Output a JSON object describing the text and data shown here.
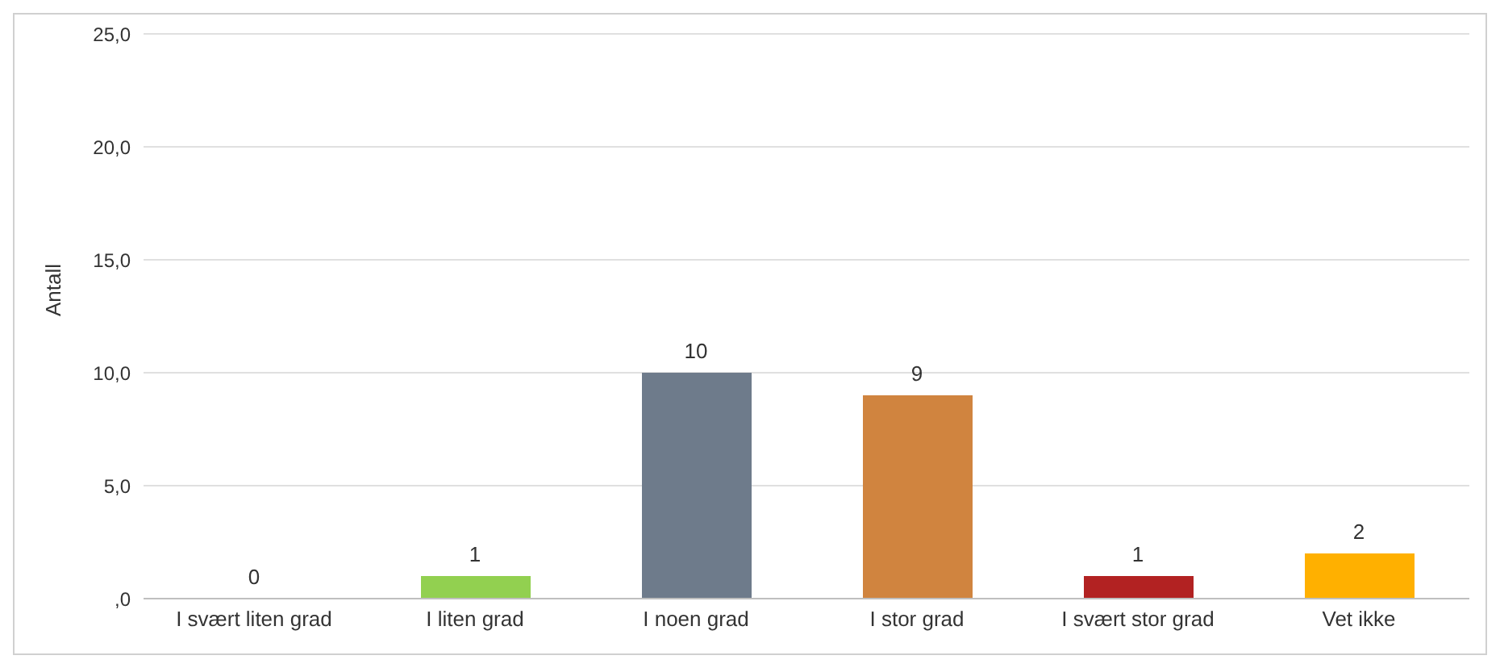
{
  "chart_data": {
    "type": "bar",
    "ylabel": "Antall",
    "categories": [
      "I svært liten grad",
      "I liten grad",
      "I noen grad",
      "I stor grad",
      "I svært stor grad",
      "Vet ikke"
    ],
    "values": [
      0,
      1,
      10,
      9,
      1,
      2
    ],
    "colors": [
      "#4472c4",
      "#92d050",
      "#6e7b8b",
      "#d0843f",
      "#b22222",
      "#ffb000"
    ],
    "ylim": [
      0,
      25
    ],
    "yticks": [
      {
        "value": 0,
        "label": ",0"
      },
      {
        "value": 5,
        "label": "5,0"
      },
      {
        "value": 10,
        "label": "10,0"
      },
      {
        "value": 15,
        "label": "15,0"
      },
      {
        "value": 20,
        "label": "20,0"
      },
      {
        "value": 25,
        "label": "25,0"
      }
    ],
    "grid": "y",
    "data_labels": true
  }
}
